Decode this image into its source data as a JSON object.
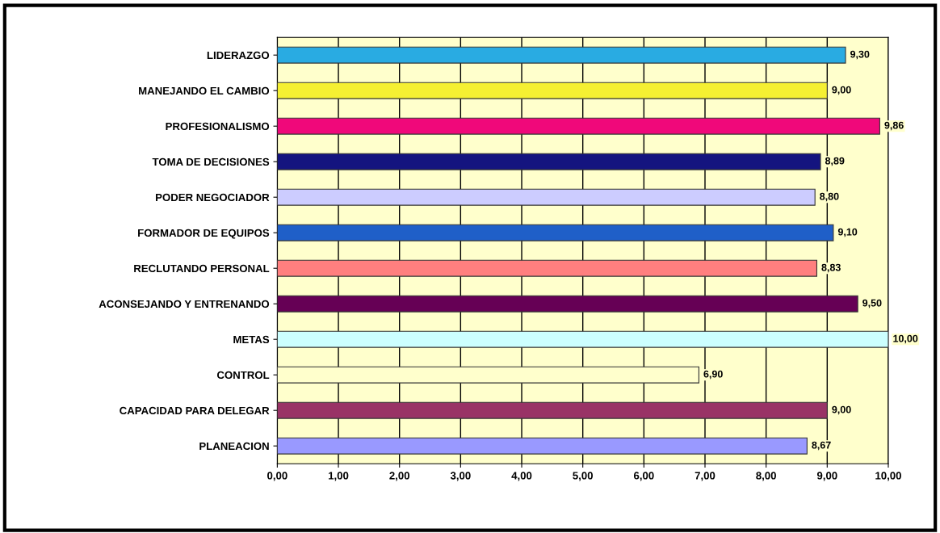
{
  "chart_data": {
    "type": "bar",
    "orientation": "horizontal",
    "categories": [
      "LIDERAZGO",
      "MANEJANDO EL CAMBIO",
      "PROFESIONALISMO",
      "TOMA DE DECISIONES",
      "PODER NEGOCIADOR",
      "FORMADOR DE EQUIPOS",
      "RECLUTANDO PERSONAL",
      "ACONSEJANDO Y ENTRENANDO",
      "METAS",
      "CONTROL",
      "CAPACIDAD PARA DELEGAR",
      "PLANEACION"
    ],
    "values": [
      9.3,
      9.0,
      9.86,
      8.89,
      8.8,
      9.1,
      8.83,
      9.5,
      10.0,
      6.9,
      9.0,
      8.67
    ],
    "value_labels": [
      "9,30",
      "9,00",
      "9,86",
      "8,89",
      "8,80",
      "9,10",
      "8,83",
      "9,50",
      "10,00",
      "6,90",
      "9,00",
      "8,67"
    ],
    "colors": [
      "#29abe2",
      "#f5f032",
      "#f0087a",
      "#14147f",
      "#ccccff",
      "#1f5fc8",
      "#ff7f7f",
      "#660055",
      "#ccffff",
      "#ffffcc",
      "#993366",
      "#9999ff"
    ],
    "xlim": [
      0,
      10
    ],
    "xticks": [
      {
        "value": 0,
        "label": "0,00"
      },
      {
        "value": 1,
        "label": "1,00"
      },
      {
        "value": 2,
        "label": "2,00"
      },
      {
        "value": 3,
        "label": "3,00"
      },
      {
        "value": 4,
        "label": "4,00"
      },
      {
        "value": 5,
        "label": "5,00"
      },
      {
        "value": 6,
        "label": "6,00"
      },
      {
        "value": 7,
        "label": "7,00"
      },
      {
        "value": 8,
        "label": "8,00"
      },
      {
        "value": 9,
        "label": "9,00"
      },
      {
        "value": 10,
        "label": "10,00"
      }
    ],
    "grid": "x",
    "legend": false
  }
}
